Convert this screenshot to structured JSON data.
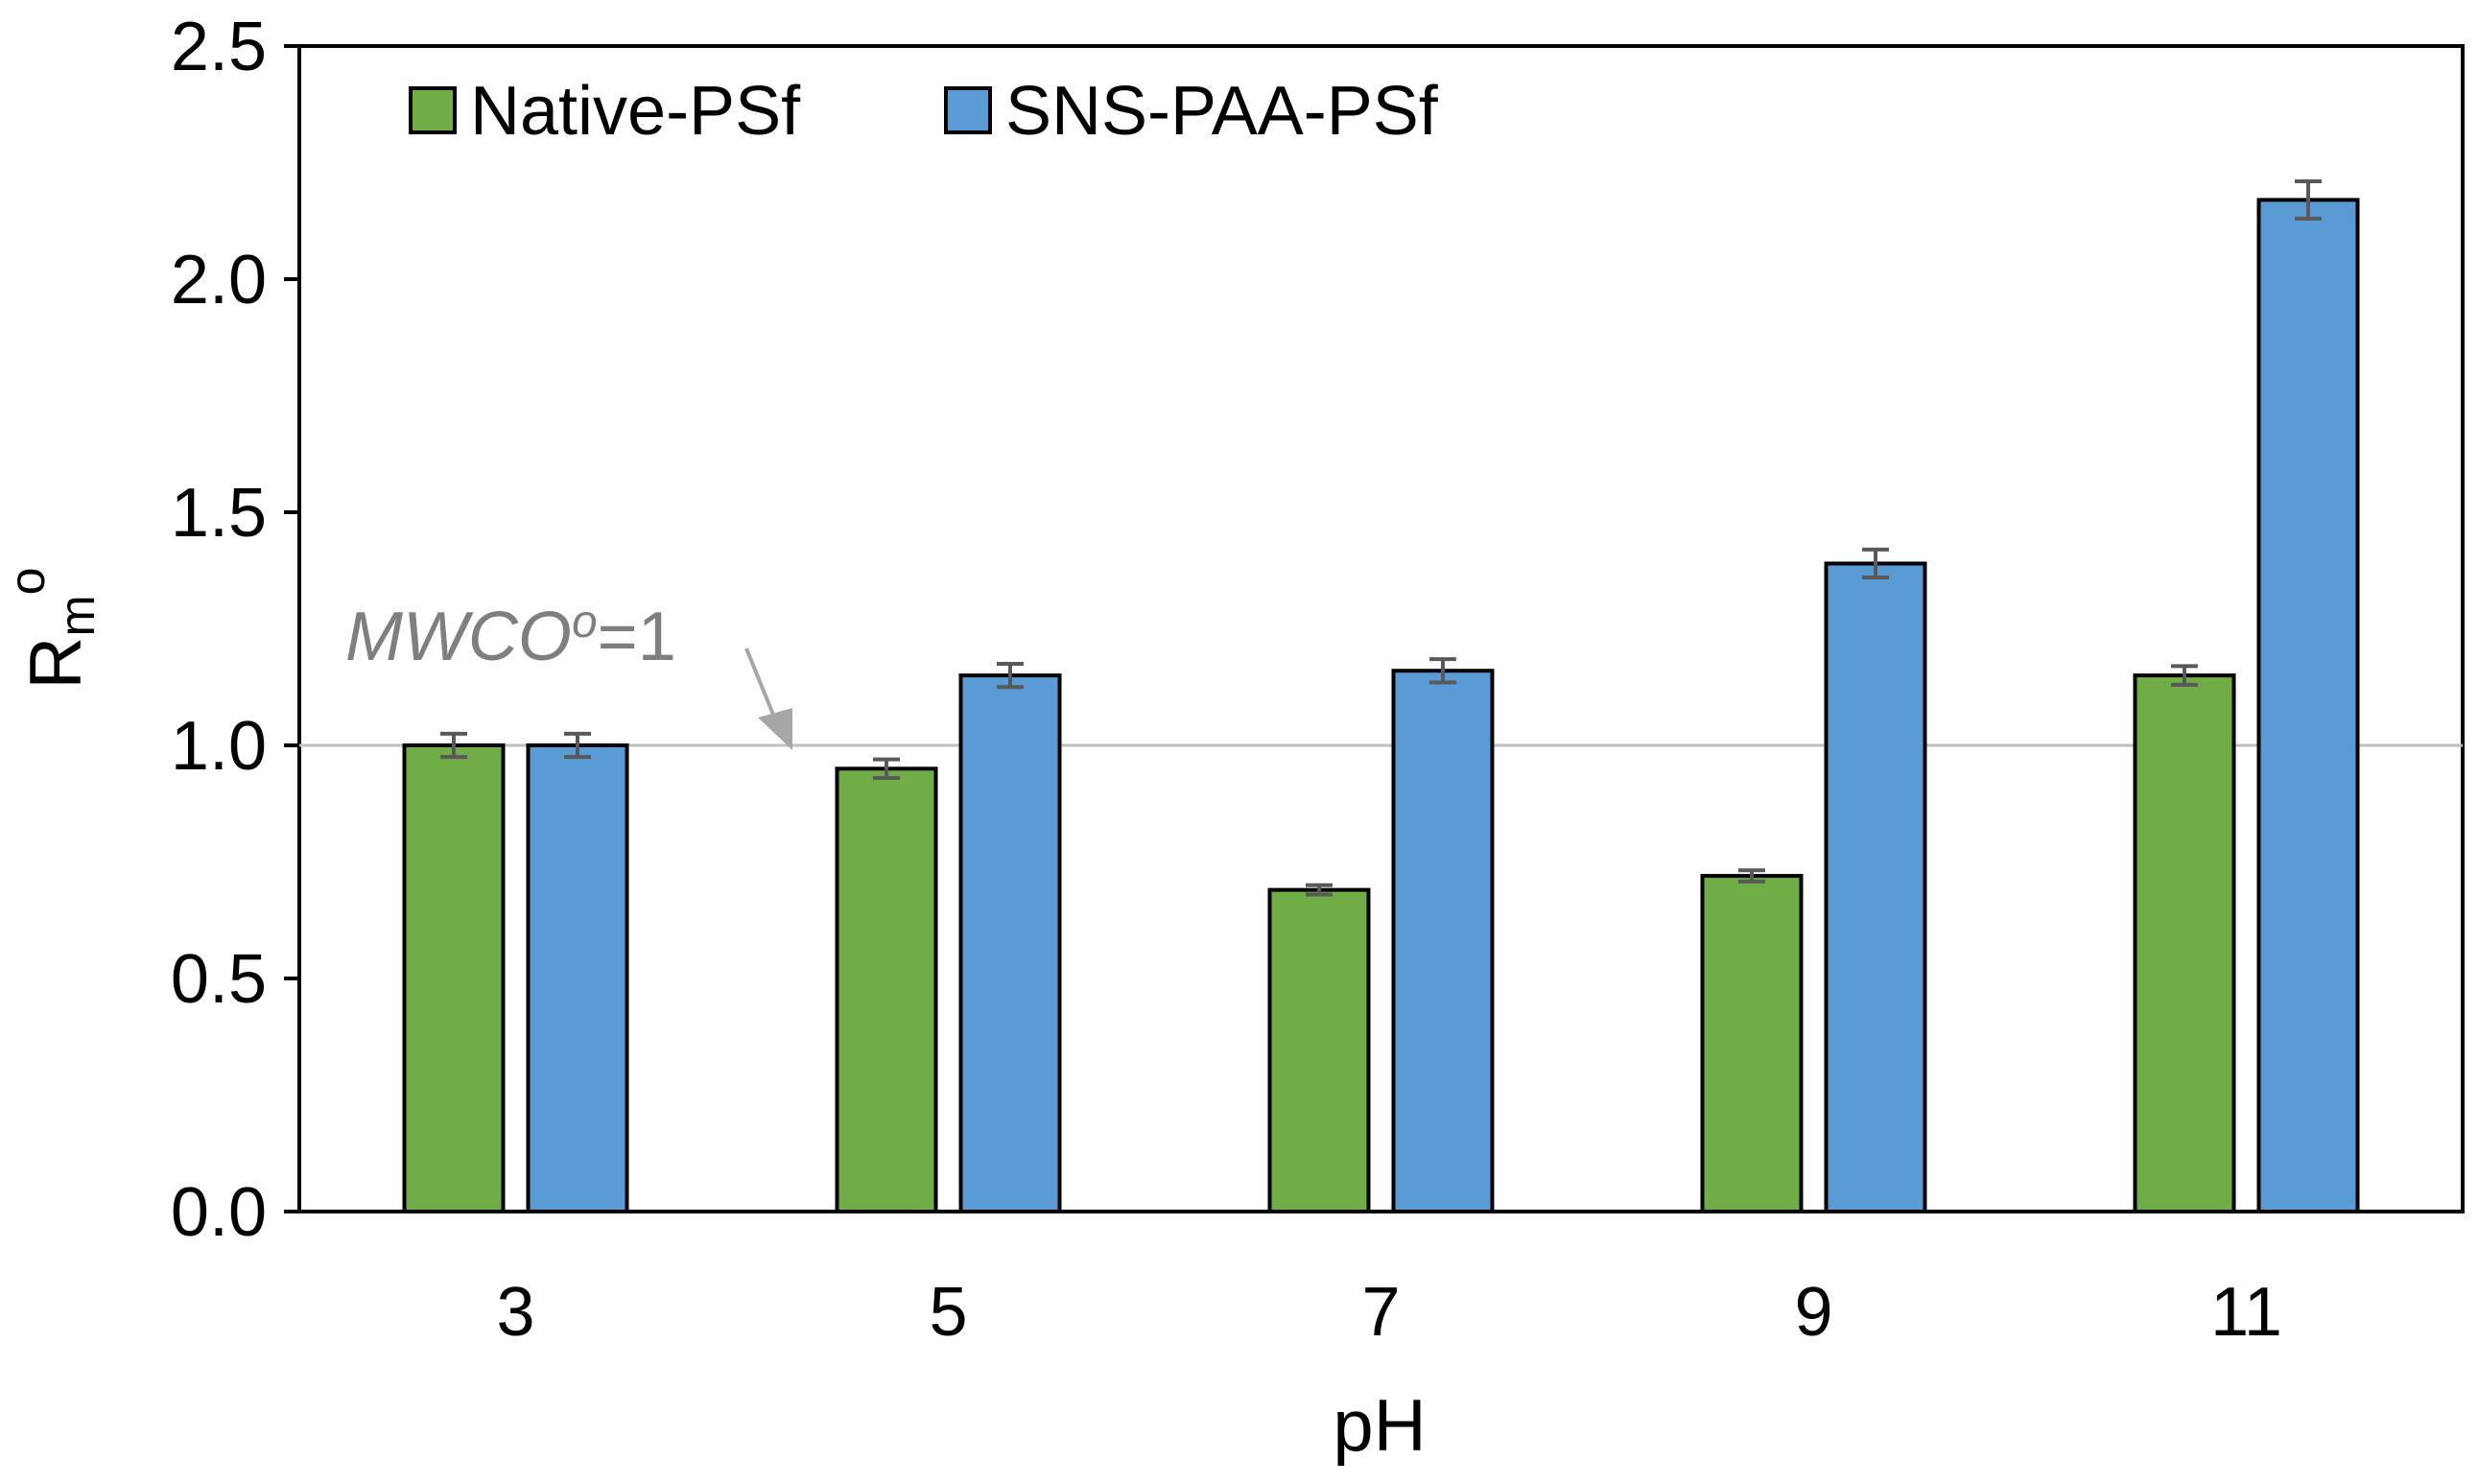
{
  "chart_data": {
    "type": "bar",
    "x": [
      3,
      5,
      7,
      9,
      11
    ],
    "categories": [
      "3",
      "5",
      "7",
      "9",
      "11"
    ],
    "series": [
      {
        "name": "Native-PSf",
        "color": "#70ad47",
        "values": [
          1.0,
          0.95,
          0.69,
          0.72,
          1.15
        ],
        "errors": [
          0.025,
          0.02,
          0.01,
          0.012,
          0.02
        ]
      },
      {
        "name": "SNS-PAA-PSf",
        "color": "#5b9bd5",
        "values": [
          1.0,
          1.15,
          1.16,
          1.39,
          2.17
        ],
        "errors": [
          0.025,
          0.025,
          0.025,
          0.03,
          0.04
        ]
      }
    ],
    "xlabel": "pH",
    "ylabel": "R",
    "ylabel_sub": "m",
    "ylabel_sup": "o",
    "ylim": [
      0,
      2.5
    ],
    "yticks": [
      "0.0",
      "0.5",
      "1.0",
      "1.5",
      "2.0",
      "2.5"
    ],
    "ytick_values": [
      0,
      0.5,
      1.0,
      1.5,
      2.0,
      2.5
    ],
    "grid": false,
    "legend_position": "top-left",
    "reference_line": {
      "y": 1.0,
      "color": "#bfbfbf",
      "label_main": "MWCO",
      "label_sup": "o",
      "label_tail": "=1"
    }
  }
}
